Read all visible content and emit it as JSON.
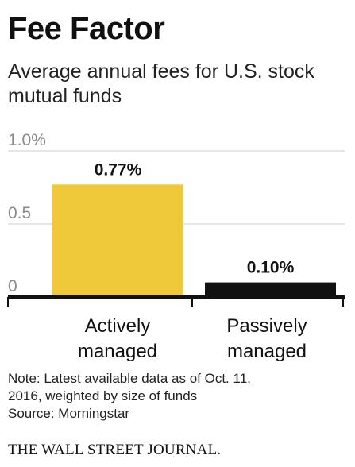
{
  "title": "Fee Factor",
  "subtitle": "Average annual fees for U.S. stock mutual funds",
  "chart_data": {
    "type": "bar",
    "categories": [
      "Actively managed",
      "Passively managed"
    ],
    "category_lines": [
      [
        "Actively",
        "managed"
      ],
      [
        "Passively",
        "managed"
      ]
    ],
    "values": [
      0.77,
      0.1
    ],
    "data_labels": [
      "0.77%",
      "0.10%"
    ],
    "bar_colors": [
      "#f0c93a",
      "#111111"
    ],
    "ylim": [
      0,
      1.0
    ],
    "y_ticks": [
      {
        "value": 1.0,
        "label": "1.0%"
      },
      {
        "value": 0.5,
        "label": "0.5"
      },
      {
        "value": 0,
        "label": "0"
      }
    ],
    "grid": true,
    "gridline_color": "#cfcfcf",
    "baseline_color": "#111111"
  },
  "note_lines": [
    "Note: Latest available data as of Oct. 11,",
    "2016, weighted by size of funds",
    "Source: Morningstar"
  ],
  "brand": "THE WALL STREET JOURNAL."
}
